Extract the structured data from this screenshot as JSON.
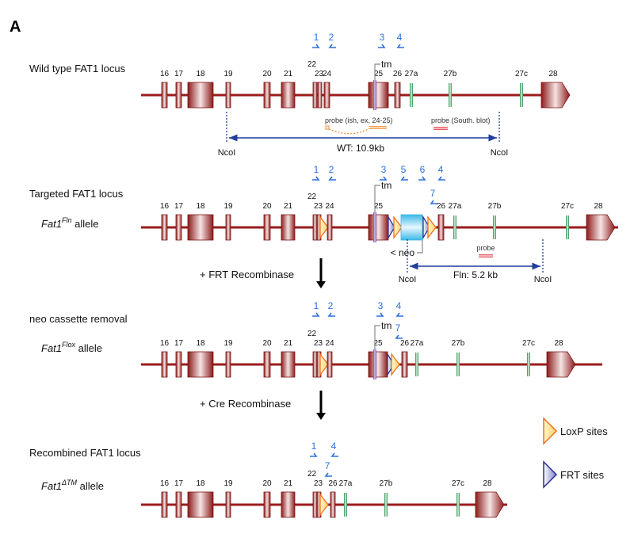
{
  "panel_label": "A",
  "colors": {
    "exon": "#8b1a1a",
    "line": "#9b1c1c",
    "green_exon": "#2e9a55",
    "primer": "#2d6fe0",
    "tm": "#8a5cc0",
    "neo": "#4fc3e8",
    "loxp": "#f07020",
    "frt": "#2a2f8a",
    "ncoi": "#1f3f9a",
    "probe_ish": "#f08a30",
    "probe_south": "#e0303a"
  },
  "rows": [
    {
      "title": "Wild type  FAT1  locus",
      "allele_base": "",
      "allele_sup": "",
      "allele_suffix": "",
      "exon_labels": [
        "16",
        "17",
        "18",
        "19",
        "20",
        "21",
        "22",
        "23",
        "24",
        "25",
        "26",
        "27a",
        "27b",
        "27c",
        "28"
      ],
      "primers": [
        "1",
        "2",
        "3",
        "4"
      ],
      "tm_label": "tm"
    },
    {
      "title": "Targeted FAT1  locus",
      "allele_base": "Fat1",
      "allele_sup": "Fln",
      "allele_suffix": " allele",
      "exon_labels": [
        "16",
        "17",
        "18",
        "19",
        "20",
        "21",
        "22",
        "23",
        "24",
        "25",
        "26",
        "27a",
        "27b",
        "27c",
        "28"
      ],
      "primers": [
        "1",
        "2",
        "3",
        "5",
        "6",
        "4",
        "7"
      ],
      "tm_label": "tm",
      "neo_label": "< neo"
    },
    {
      "title": "neo cassette removal",
      "allele_base": "Fat1",
      "allele_sup": "Flox",
      "allele_suffix": " allele",
      "exon_labels": [
        "16",
        "17",
        "18",
        "19",
        "20",
        "21",
        "22",
        "23",
        "24",
        "25",
        "26",
        "27a",
        "27b",
        "27c",
        "28"
      ],
      "primers": [
        "1",
        "2",
        "3",
        "4",
        "7"
      ],
      "tm_label": "tm"
    },
    {
      "title": "Recombined FAT1  locus",
      "allele_base": "Fat1",
      "allele_sup": "ΔTM",
      "allele_suffix": " allele",
      "exon_labels": [
        "16",
        "17",
        "18",
        "19",
        "20",
        "21",
        "22",
        "23",
        "26",
        "27a",
        "27b",
        "27c",
        "28"
      ],
      "primers": [
        "1",
        "4",
        "7"
      ]
    }
  ],
  "wt_annotations": {
    "probe_ish": "probe (ish, ex. 24-25)",
    "probe_south": "probe (South. blot)",
    "ncoi_left": "NcoI",
    "ncoi_right": "NcoI",
    "fragment": "WT: 10.9kb"
  },
  "fln_annotations": {
    "probe": "probe",
    "ncoi_left": "NcoI",
    "ncoi_right": "NcoI",
    "fragment": "Fln: 5.2 kb"
  },
  "steps": [
    {
      "label": "+ FRT Recombinase"
    },
    {
      "label": "+ Cre Recombinase"
    }
  ],
  "legend": [
    {
      "label": "LoxP sites",
      "icon": "loxp-triangle"
    },
    {
      "label": "FRT sites",
      "icon": "frt-triangle"
    }
  ]
}
